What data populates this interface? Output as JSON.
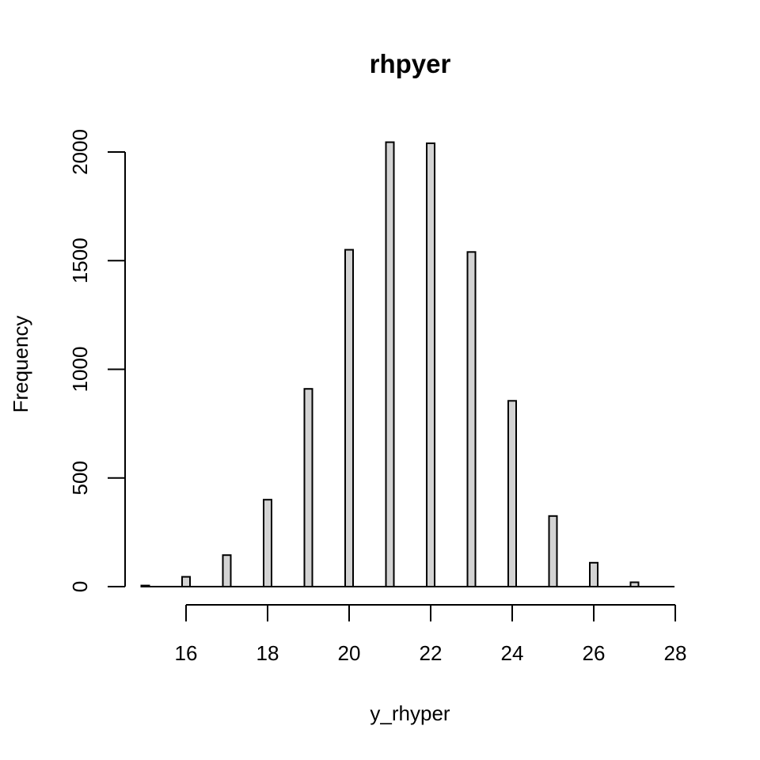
{
  "chart_data": {
    "type": "bar",
    "title": "rhpyer",
    "xlabel": "y_rhyper",
    "ylabel": "Frequency",
    "x": [
      15,
      16,
      17,
      18,
      19,
      20,
      21,
      22,
      23,
      24,
      25,
      26,
      27
    ],
    "values": [
      5,
      45,
      145,
      400,
      910,
      1550,
      2045,
      2040,
      1540,
      855,
      325,
      110,
      20
    ],
    "xlim": [
      15,
      28
    ],
    "ylim": [
      0,
      2050
    ],
    "xticks": [
      "16",
      "18",
      "20",
      "22",
      "24",
      "26",
      "28"
    ],
    "yticks": [
      "0",
      "500",
      "1000",
      "1500",
      "2000"
    ],
    "grid": false,
    "bar_fill": "#d3d3d3",
    "bar_stroke": "#000000"
  }
}
